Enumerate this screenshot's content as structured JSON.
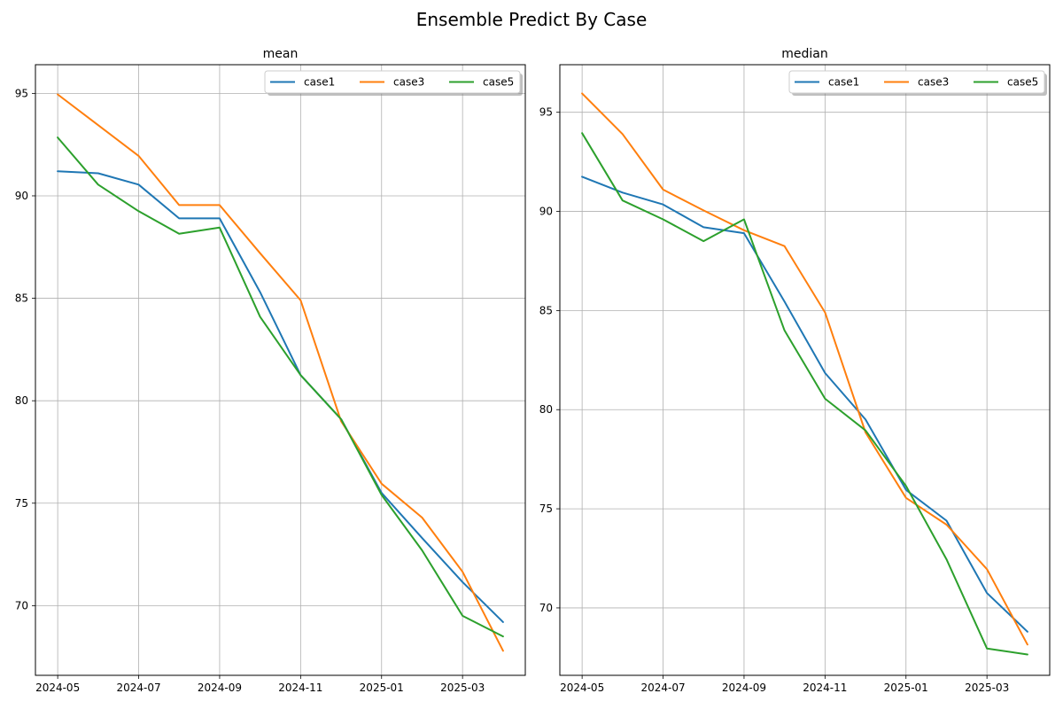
{
  "figure": {
    "title": "Ensemble Predict By Case"
  },
  "chart_data": [
    {
      "type": "line",
      "title": "mean",
      "xlabel": "",
      "ylabel": "",
      "x": [
        "2024-05",
        "2024-06",
        "2024-07",
        "2024-08",
        "2024-09",
        "2024-10",
        "2024-11",
        "2024-12",
        "2025-01",
        "2025-02",
        "2025-03",
        "2025-04"
      ],
      "x_ticks": [
        "2024-05",
        "2024-07",
        "2024-09",
        "2024-11",
        "2025-01",
        "2025-03"
      ],
      "yticks": [
        70,
        75,
        80,
        85,
        90,
        95
      ],
      "ylim": [
        66.6,
        96.4
      ],
      "grid": true,
      "legend": "upper right, 3 columns",
      "series": [
        {
          "name": "case1",
          "color": "#1f77b4",
          "values": [
            91.2,
            91.1,
            90.55,
            88.9,
            88.9,
            85.3,
            81.25,
            79.1,
            75.5,
            73.3,
            71.15,
            69.2
          ]
        },
        {
          "name": "case3",
          "color": "#ff7f0e",
          "values": [
            94.95,
            93.45,
            91.95,
            89.55,
            89.55,
            87.2,
            84.9,
            79.0,
            75.95,
            74.3,
            71.65,
            67.8
          ]
        },
        {
          "name": "case5",
          "color": "#2ca02c",
          "values": [
            92.85,
            90.55,
            89.25,
            88.15,
            88.45,
            84.1,
            81.25,
            79.1,
            75.4,
            72.7,
            69.5,
            68.5
          ]
        }
      ]
    },
    {
      "type": "line",
      "title": "median",
      "xlabel": "",
      "ylabel": "",
      "x": [
        "2024-05",
        "2024-06",
        "2024-07",
        "2024-08",
        "2024-09",
        "2024-10",
        "2024-11",
        "2024-12",
        "2025-01",
        "2025-02",
        "2025-03",
        "2025-04"
      ],
      "x_ticks": [
        "2024-05",
        "2024-07",
        "2024-09",
        "2024-11",
        "2025-01",
        "2025-03"
      ],
      "yticks": [
        70,
        75,
        80,
        85,
        90,
        95
      ],
      "ylim": [
        66.6,
        97.4
      ],
      "grid": true,
      "legend": "upper right, 3 columns",
      "series": [
        {
          "name": "case1",
          "color": "#1f77b4",
          "values": [
            91.75,
            90.95,
            90.35,
            89.2,
            88.9,
            85.45,
            81.85,
            79.5,
            75.95,
            74.4,
            70.75,
            68.8
          ]
        },
        {
          "name": "case3",
          "color": "#ff7f0e",
          "values": [
            95.95,
            93.9,
            91.1,
            90.05,
            89.05,
            88.25,
            84.9,
            78.85,
            75.55,
            74.2,
            71.95,
            68.15
          ]
        },
        {
          "name": "case5",
          "color": "#2ca02c",
          "values": [
            93.95,
            90.55,
            89.6,
            88.5,
            89.6,
            84.0,
            80.55,
            78.95,
            76.15,
            72.45,
            67.95,
            67.65
          ]
        }
      ]
    }
  ]
}
